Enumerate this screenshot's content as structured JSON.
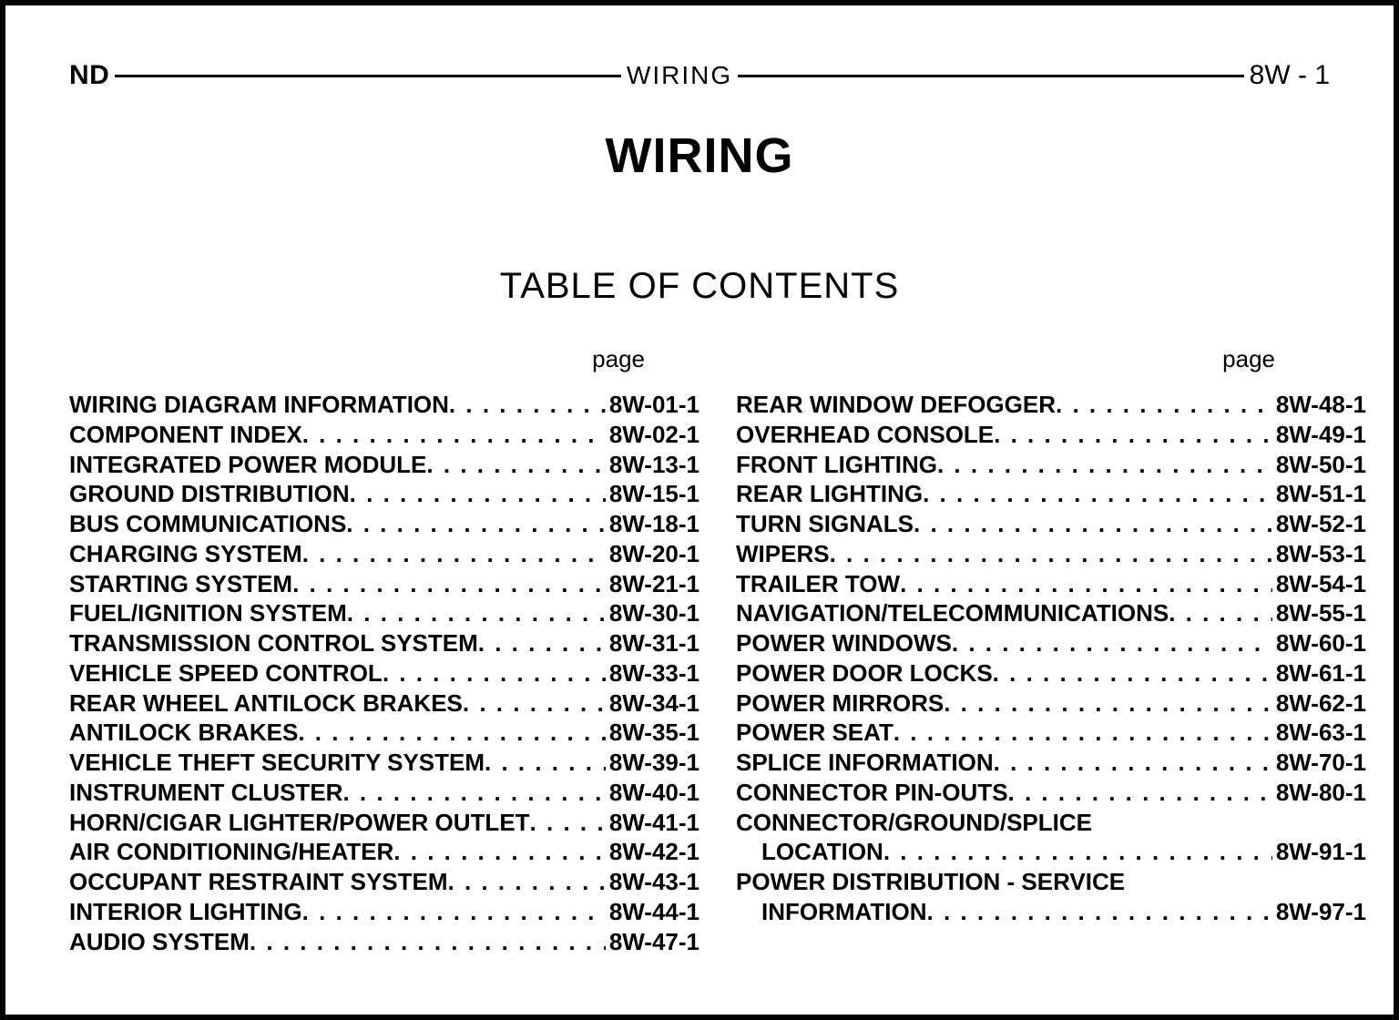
{
  "header": {
    "left": "ND",
    "center": "WIRING",
    "right": "8W - 1"
  },
  "title": "WIRING",
  "subtitle": "TABLE OF CONTENTS",
  "page_label": "page",
  "left_column": [
    {
      "label": "WIRING DIAGRAM INFORMATION",
      "page": "8W-01-1"
    },
    {
      "label": "COMPONENT INDEX",
      "page": "8W-02-1"
    },
    {
      "label": "INTEGRATED POWER MODULE",
      "page": "8W-13-1"
    },
    {
      "label": "GROUND DISTRIBUTION",
      "page": "8W-15-1"
    },
    {
      "label": "BUS COMMUNICATIONS",
      "page": "8W-18-1"
    },
    {
      "label": "CHARGING SYSTEM",
      "page": "8W-20-1"
    },
    {
      "label": "STARTING SYSTEM",
      "page": "8W-21-1"
    },
    {
      "label": "FUEL/IGNITION SYSTEM",
      "page": "8W-30-1"
    },
    {
      "label": "TRANSMISSION CONTROL SYSTEM",
      "page": "8W-31-1"
    },
    {
      "label": "VEHICLE SPEED CONTROL",
      "page": "8W-33-1"
    },
    {
      "label": "REAR WHEEL ANTILOCK BRAKES",
      "page": "8W-34-1"
    },
    {
      "label": "ANTILOCK BRAKES",
      "page": "8W-35-1"
    },
    {
      "label": "VEHICLE THEFT SECURITY SYSTEM",
      "page": "8W-39-1"
    },
    {
      "label": "INSTRUMENT CLUSTER",
      "page": "8W-40-1"
    },
    {
      "label": "HORN/CIGAR LIGHTER/POWER OUTLET",
      "page": "8W-41-1"
    },
    {
      "label": "AIR CONDITIONING/HEATER",
      "page": "8W-42-1"
    },
    {
      "label": "OCCUPANT RESTRAINT SYSTEM",
      "page": "8W-43-1"
    },
    {
      "label": "INTERIOR LIGHTING",
      "page": "8W-44-1"
    },
    {
      "label": "AUDIO SYSTEM",
      "page": "8W-47-1"
    }
  ],
  "right_column": [
    {
      "label": "REAR WINDOW DEFOGGER",
      "page": "8W-48-1"
    },
    {
      "label": "OVERHEAD CONSOLE",
      "page": "8W-49-1"
    },
    {
      "label": "FRONT LIGHTING",
      "page": "8W-50-1"
    },
    {
      "label": "REAR LIGHTING",
      "page": "8W-51-1"
    },
    {
      "label": "TURN SIGNALS",
      "page": "8W-52-1"
    },
    {
      "label": "WIPERS",
      "page": "8W-53-1"
    },
    {
      "label": "TRAILER TOW",
      "page": "8W-54-1"
    },
    {
      "label": "NAVIGATION/TELECOMMUNICATIONS",
      "page": "8W-55-1"
    },
    {
      "label": "POWER WINDOWS",
      "page": "8W-60-1"
    },
    {
      "label": "POWER DOOR LOCKS",
      "page": "8W-61-1"
    },
    {
      "label": "POWER MIRRORS",
      "page": "8W-62-1"
    },
    {
      "label": "POWER SEAT",
      "page": "8W-63-1"
    },
    {
      "label": "SPLICE INFORMATION",
      "page": "8W-70-1"
    },
    {
      "label": "CONNECTOR PIN-OUTS",
      "page": "8W-80-1"
    },
    {
      "label": "CONNECTOR/GROUND/SPLICE",
      "page": "",
      "no_page": true
    },
    {
      "label": "LOCATION",
      "page": "8W-91-1",
      "indent": true
    },
    {
      "label": "POWER DISTRIBUTION - SERVICE",
      "page": "",
      "no_page": true
    },
    {
      "label": "INFORMATION",
      "page": "8W-97-1",
      "indent": true
    }
  ]
}
